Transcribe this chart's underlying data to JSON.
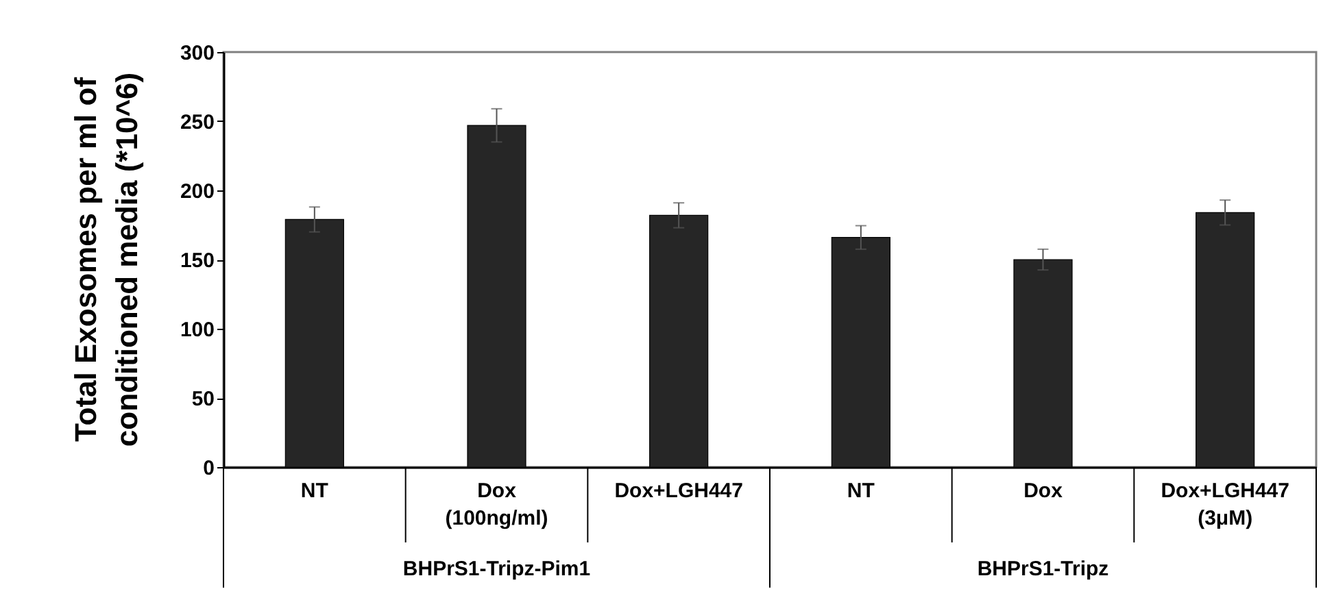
{
  "chart_data": {
    "type": "bar",
    "ylabel": "Total Exosomes per ml of\nconditioned media (*10^6)",
    "categories": [
      "NT",
      "Dox\n(100ng/ml)",
      "Dox+LGH447",
      "NT",
      "Dox",
      "Dox+LGH447\n(3μM)"
    ],
    "values": [
      179,
      247,
      182,
      166,
      150,
      184
    ],
    "errors": [
      9,
      12,
      9,
      8.5,
      7.5,
      9
    ],
    "color": "#262626",
    "ylim": [
      0,
      300
    ],
    "yticks": [
      0,
      50,
      100,
      150,
      200,
      250,
      300
    ],
    "grid": false,
    "annotations": [
      "BHPrS1-Tripz-Pim1",
      "BHPrS1-Tripz"
    ]
  }
}
